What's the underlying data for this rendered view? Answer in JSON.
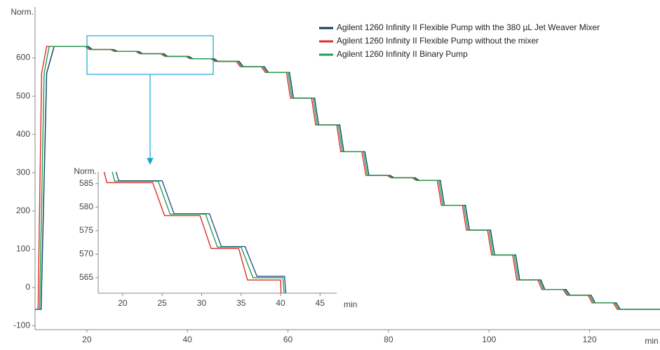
{
  "chart_data": [
    {
      "type": "line",
      "y_label": "Norm.",
      "x_label": "min",
      "xlim": [
        9.7,
        134
      ],
      "xticks": [
        20,
        40,
        60,
        80,
        100,
        120
      ],
      "ylim": [
        -110,
        700
      ],
      "yticks": [
        -100,
        0,
        100,
        200,
        300,
        400,
        500,
        600
      ],
      "grid": false,
      "legend": "upper right",
      "series": [
        {
          "name": "Agilent 1260 Infinity II Flexible Pump with the 380 µL Jet Weaver Mixer",
          "color": "#0b3d5c",
          "x": [
            9.7,
            10.9,
            12,
            13.5,
            20.3,
            21.1,
            25.3,
            26.1,
            30.3,
            31.1,
            35.3,
            36.1,
            40.3,
            41.1,
            45.3,
            46.1,
            50.3,
            51.1,
            55.3,
            56.1,
            60.3,
            61.1,
            65.3,
            66.1,
            70.3,
            71.1,
            75.3,
            76.1,
            80.3,
            81.1,
            85.3,
            86.1,
            90.3,
            91.1,
            95.3,
            96.1,
            100.3,
            101.1,
            105.3,
            106.1,
            110.3,
            111.1,
            115.3,
            116.1,
            120.3,
            121.1,
            125.3,
            126.1,
            134
          ],
          "values": [
            -57,
            -57,
            560,
            630,
            630,
            622,
            622,
            617,
            617,
            611,
            611,
            604,
            604,
            598,
            598,
            591,
            591,
            577,
            577,
            562,
            562,
            495,
            495,
            425,
            425,
            355,
            355,
            293,
            293,
            287,
            287,
            280,
            280,
            215,
            215,
            150,
            150,
            85,
            85,
            20,
            20,
            -5,
            -5,
            -20,
            -20,
            -40,
            -40,
            -57,
            -57
          ]
        },
        {
          "name": "Agilent 1260 Infinity II Flexible Pump without the mixer",
          "color": "#e02b2b",
          "x": [
            9.7,
            10.3,
            11,
            12,
            19.7,
            20.5,
            24.7,
            25.5,
            29.7,
            30.5,
            34.7,
            35.5,
            39.7,
            40.5,
            44.7,
            45.5,
            49.7,
            50.5,
            54.7,
            55.5,
            59.7,
            60.5,
            64.7,
            65.5,
            69.7,
            70.5,
            74.7,
            75.5,
            79.7,
            80.5,
            84.7,
            85.5,
            89.7,
            90.5,
            94.7,
            95.5,
            99.7,
            100.5,
            104.7,
            105.5,
            109.7,
            110.5,
            114.7,
            115.5,
            119.7,
            120.5,
            124.7,
            125.5,
            134
          ],
          "values": [
            -57,
            -57,
            560,
            630,
            630,
            622,
            622,
            617,
            617,
            611,
            611,
            604,
            604,
            598,
            598,
            591,
            591,
            577,
            577,
            562,
            562,
            495,
            495,
            425,
            425,
            355,
            355,
            293,
            293,
            287,
            287,
            280,
            280,
            215,
            215,
            150,
            150,
            85,
            85,
            20,
            20,
            -5,
            -5,
            -20,
            -20,
            -40,
            -40,
            -57,
            -57
          ]
        },
        {
          "name": "Agilent 1260 Infinity II Binary Pump",
          "color": "#1f9f4f",
          "x": [
            9.7,
            10.6,
            11.5,
            12.5,
            20,
            20.8,
            25,
            25.8,
            30,
            30.8,
            35,
            35.8,
            40,
            40.8,
            45,
            45.8,
            50,
            50.8,
            55,
            55.8,
            60,
            60.8,
            65,
            65.8,
            70,
            70.8,
            75,
            75.8,
            80,
            80.8,
            85,
            85.8,
            90,
            90.8,
            95,
            95.8,
            100,
            100.8,
            105,
            105.8,
            110,
            110.8,
            115,
            115.8,
            120,
            120.8,
            125,
            125.8,
            134
          ],
          "values": [
            -57,
            -57,
            560,
            630,
            630,
            622,
            622,
            617,
            617,
            611,
            611,
            604,
            604,
            598,
            598,
            591,
            591,
            577,
            577,
            562,
            562,
            495,
            495,
            425,
            425,
            355,
            355,
            293,
            293,
            287,
            287,
            280,
            280,
            215,
            215,
            150,
            150,
            85,
            85,
            20,
            20,
            -5,
            -5,
            -20,
            -20,
            -40,
            -40,
            -57,
            -57
          ]
        }
      ]
    },
    {
      "type": "line",
      "y_label": "Norm.",
      "x_label": "min",
      "xlim": [
        16.9,
        47.1
      ],
      "xticks": [
        20,
        25,
        30,
        35,
        40,
        45
      ],
      "ylim": [
        561.7,
        587.5
      ],
      "yticks": [
        565,
        570,
        575,
        580,
        585
      ],
      "grid": false,
      "series": [
        {
          "color": "#2f4f8f",
          "x": [
            17.8,
            19.5,
            25,
            26.5,
            31,
            32.5,
            35.5,
            37,
            40.5,
            41.2
          ],
          "values": [
            595,
            585.6,
            585.6,
            578.6,
            578.6,
            571.6,
            571.6,
            565.3,
            565.3,
            550
          ]
        },
        {
          "color": "#e02b2b",
          "x": [
            16.5,
            18,
            23.8,
            25.3,
            29.8,
            31.2,
            34.7,
            35.8,
            40,
            40.3
          ],
          "values": [
            595,
            585.2,
            585.2,
            578.2,
            578.2,
            571.2,
            571.2,
            564.5,
            564.5,
            550
          ]
        },
        {
          "color": "#1f9f4f",
          "x": [
            17.5,
            19,
            24.5,
            26,
            30.5,
            32,
            35,
            36.5,
            40.3,
            41
          ],
          "values": [
            595,
            585.5,
            585.5,
            578.5,
            578.5,
            571.5,
            571.5,
            565,
            565,
            550
          ]
        }
      ]
    }
  ]
}
